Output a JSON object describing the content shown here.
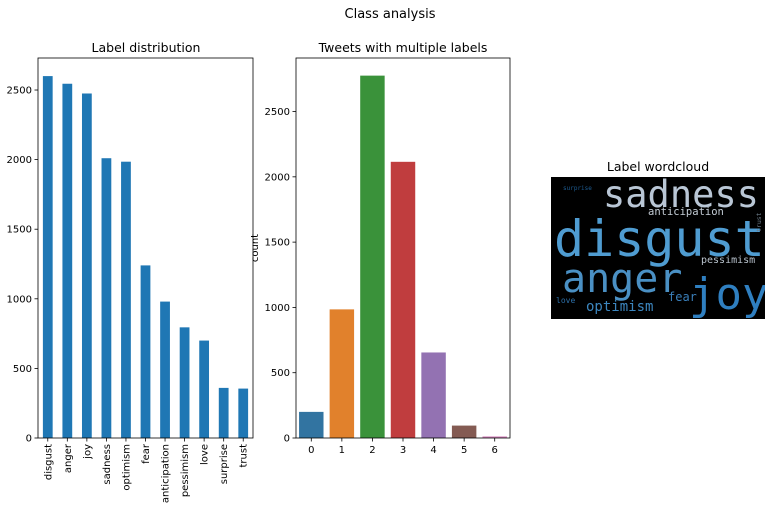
{
  "figure": {
    "suptitle": "Class analysis"
  },
  "chart_data": [
    {
      "type": "bar",
      "title": "Label distribution",
      "xlabel": "",
      "ylabel": "",
      "categories": [
        "disgust",
        "anger",
        "joy",
        "sadness",
        "optimism",
        "fear",
        "anticipation",
        "pessimism",
        "love",
        "surprise",
        "trust"
      ],
      "values": [
        2600,
        2545,
        2475,
        2010,
        1985,
        1240,
        980,
        795,
        700,
        360,
        355
      ],
      "ylim": [
        0,
        2730
      ],
      "yticks": [
        0,
        500,
        1000,
        1500,
        2000,
        2500
      ],
      "bar_color": "#1f77b4",
      "grid": false
    },
    {
      "type": "bar",
      "title": "Tweets with multiple labels",
      "xlabel": "",
      "ylabel": "count",
      "categories": [
        "0",
        "1",
        "2",
        "3",
        "4",
        "5",
        "6"
      ],
      "values": [
        200,
        985,
        2775,
        2115,
        655,
        95,
        12
      ],
      "ylim": [
        0,
        2910
      ],
      "yticks": [
        0,
        500,
        1000,
        1500,
        2000,
        2500
      ],
      "colors": [
        "#3274a1",
        "#e1812c",
        "#3a923a",
        "#c03d3e",
        "#9372b2",
        "#845b53",
        "#d684bd"
      ],
      "grid": false
    }
  ],
  "wordcloud": {
    "title": "Label wordcloud",
    "background": "#000000",
    "words": [
      {
        "text": "sadness",
        "color": "#b9c6d5"
      },
      {
        "text": "disgust",
        "color": "#4f9cd1"
      },
      {
        "text": "anger",
        "color": "#4a90c4"
      },
      {
        "text": "joy",
        "color": "#2f7fc0"
      },
      {
        "text": "anticipation",
        "color": "#c4cdd6"
      },
      {
        "text": "pessimism",
        "color": "#b8c2cc"
      },
      {
        "text": "optimism",
        "color": "#3c86bf"
      },
      {
        "text": "fear",
        "color": "#3a7fba"
      },
      {
        "text": "love",
        "color": "#2c6fa8"
      },
      {
        "text": "trust",
        "color": "#6c7b89"
      },
      {
        "text": "surprise",
        "color": "#1e5d93"
      }
    ]
  }
}
